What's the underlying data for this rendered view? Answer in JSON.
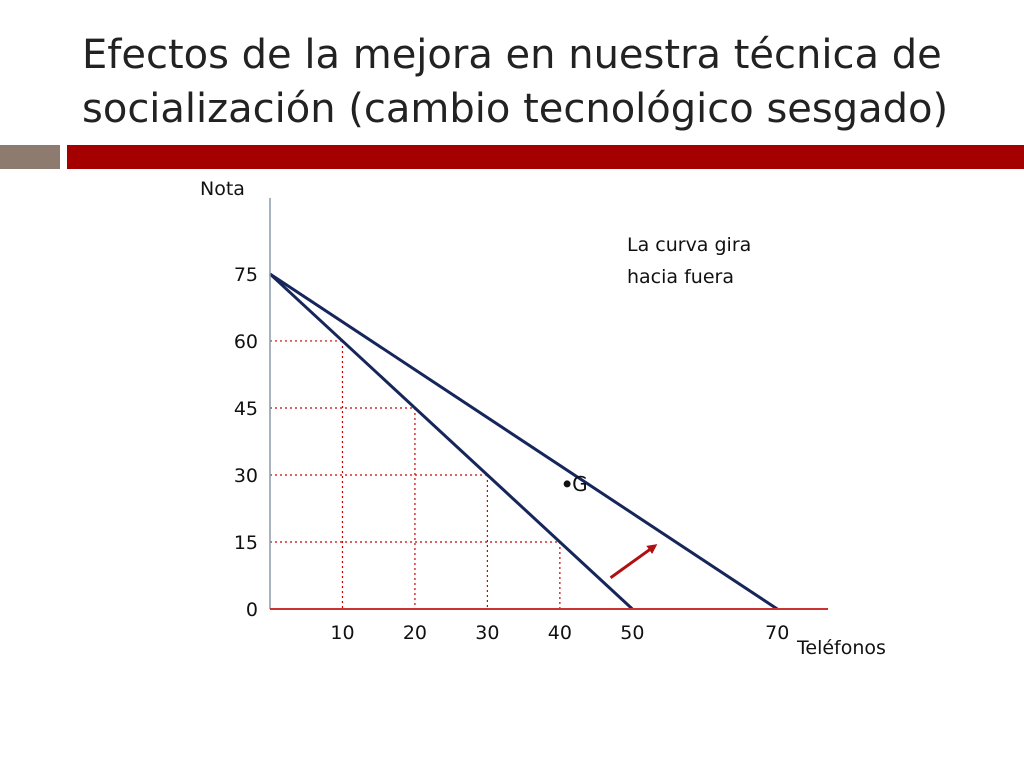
{
  "slide": {
    "title_line1": "Efectos de la mejora en nuestra técnica de",
    "title_line2": "socialización (cambio tecnológico sesgado)",
    "colors": {
      "accent_bar": "#a50000",
      "side_block": "#8c7b6e",
      "lines": "#16265a",
      "grid": "#cc0000",
      "arrow": "#b01010"
    }
  },
  "chart_data": {
    "type": "line",
    "title": "",
    "xlabel": "Teléfonos",
    "ylabel": "Nota",
    "xlim": [
      0,
      77
    ],
    "ylim": [
      0,
      92
    ],
    "x_ticks": [
      "10",
      "20",
      "30",
      "40",
      "50",
      "70"
    ],
    "y_ticks": [
      "0",
      "15",
      "30",
      "45",
      "60",
      "75"
    ],
    "series": [
      {
        "points": [
          [
            0,
            75
          ],
          [
            50,
            0
          ]
        ]
      },
      {
        "points": [
          [
            0,
            75
          ],
          [
            70,
            0
          ]
        ]
      }
    ],
    "guides": [
      [
        10,
        60
      ],
      [
        20,
        45
      ],
      [
        30,
        30
      ],
      [
        40,
        15
      ]
    ],
    "point": {
      "label": "G",
      "x": 41,
      "y": 28
    },
    "arrow": {
      "from": [
        47,
        7
      ],
      "to": [
        53,
        14
      ]
    },
    "annotation_line1": "La curva gira",
    "annotation_line2": "hacia fuera",
    "grid": false,
    "legend": "none"
  }
}
